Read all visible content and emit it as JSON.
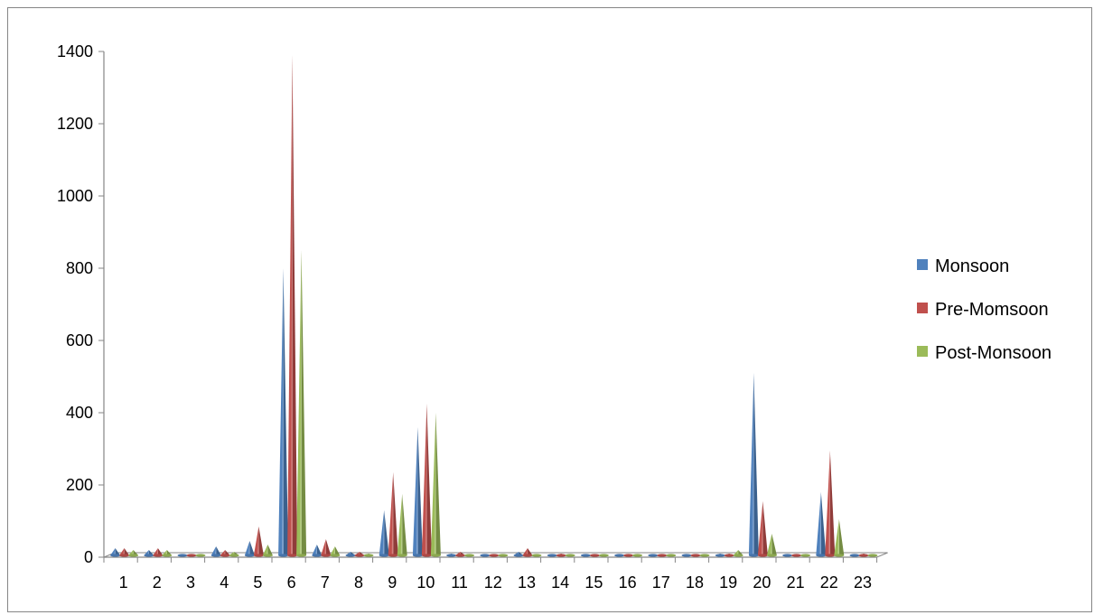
{
  "chart_data": {
    "type": "bar",
    "style": "3d-cone",
    "categories": [
      "1",
      "2",
      "3",
      "4",
      "5",
      "6",
      "7",
      "8",
      "9",
      "10",
      "11",
      "12",
      "13",
      "14",
      "15",
      "16",
      "17",
      "18",
      "19",
      "20",
      "21",
      "22",
      "23"
    ],
    "series": [
      {
        "name": "Monsoon",
        "color": "#4F81BD",
        "values": [
          25,
          20,
          5,
          30,
          45,
          800,
          35,
          15,
          130,
          360,
          10,
          5,
          15,
          5,
          5,
          5,
          5,
          5,
          10,
          510,
          5,
          180,
          5
        ]
      },
      {
        "name": "Pre-Momsoon",
        "color": "#C0504D",
        "values": [
          25,
          25,
          5,
          20,
          85,
          1390,
          50,
          15,
          235,
          425,
          15,
          5,
          25,
          10,
          5,
          5,
          5,
          5,
          10,
          155,
          5,
          295,
          10
        ]
      },
      {
        "name": "Post-Monsoon",
        "color": "#9BBB59",
        "values": [
          20,
          20,
          5,
          15,
          35,
          850,
          30,
          10,
          175,
          400,
          5,
          5,
          5,
          5,
          5,
          5,
          5,
          5,
          20,
          65,
          5,
          105,
          5
        ]
      }
    ],
    "y_ticks": [
      "0",
      "200",
      "400",
      "600",
      "800",
      "1000",
      "1200",
      "1400"
    ],
    "ylim": [
      0,
      1400
    ],
    "grid": false,
    "legend_position": "right"
  }
}
